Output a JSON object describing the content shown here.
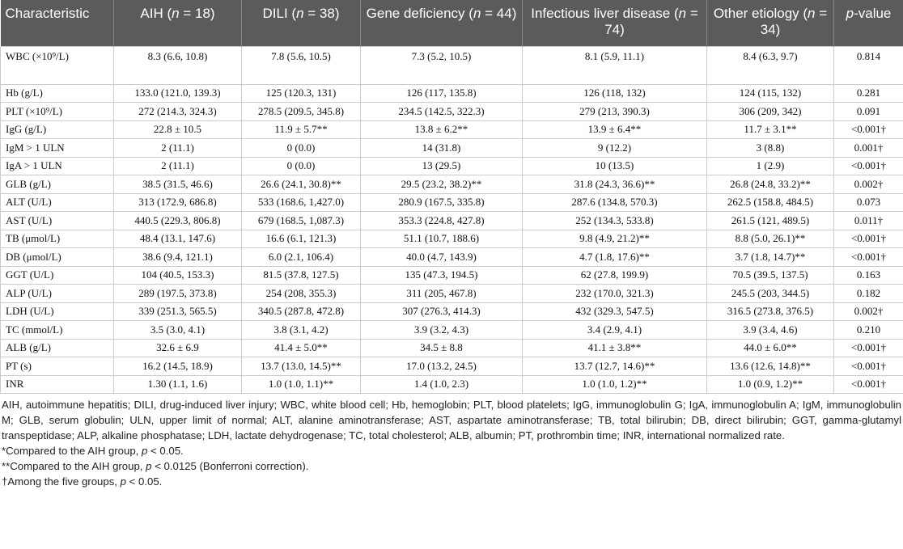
{
  "table": {
    "header": [
      [
        {
          "text": "Characteristic"
        }
      ],
      [
        {
          "text": "AIH ("
        },
        {
          "text": "n",
          "italic": true
        },
        {
          "text": " = 18)"
        }
      ],
      [
        {
          "text": "DILI ("
        },
        {
          "text": "n",
          "italic": true
        },
        {
          "text": " = 38)"
        }
      ],
      [
        {
          "text": "Gene deficiency ("
        },
        {
          "text": "n",
          "italic": true
        },
        {
          "text": " = 44)"
        }
      ],
      [
        {
          "text": "Infectious liver disease ("
        },
        {
          "text": "n",
          "italic": true
        },
        {
          "text": " = 74)"
        }
      ],
      [
        {
          "text": "Other etiology ("
        },
        {
          "text": "n",
          "italic": true
        },
        {
          "text": " = 34)"
        }
      ],
      [
        {
          "text": "p",
          "italic": true
        },
        {
          "text": "-value"
        }
      ]
    ],
    "rows": [
      [
        "WBC (×10⁹/L)",
        "8.3 (6.6, 10.8)",
        "7.8 (5.6, 10.5)",
        "7.3 (5.2, 10.5)",
        "8.1 (5.9, 11.1)",
        "8.4 (6.3, 9.7)",
        "0.814"
      ],
      [
        "Hb (g/L)",
        "133.0 (121.0, 139.3)",
        "125 (120.3, 131)",
        "126 (117, 135.8)",
        "126 (118, 132)",
        "124 (115, 132)",
        "0.281"
      ],
      [
        "PLT (×10⁹/L)",
        "272 (214.3, 324.3)",
        "278.5 (209.5, 345.8)",
        "234.5 (142.5, 322.3)",
        "279 (213, 390.3)",
        "306 (209, 342)",
        "0.091"
      ],
      [
        "IgG (g/L)",
        "22.8 ± 10.5",
        "11.9 ± 5.7**",
        "13.8 ± 6.2**",
        "13.9 ± 6.4**",
        "11.7 ± 3.1**",
        "<0.001†"
      ],
      [
        "IgM > 1 ULN",
        "2 (11.1)",
        "0 (0.0)",
        "14 (31.8)",
        "9 (12.2)",
        "3 (8.8)",
        "0.001†"
      ],
      [
        "IgA > 1 ULN",
        "2 (11.1)",
        "0 (0.0)",
        "13 (29.5)",
        "10 (13.5)",
        "1 (2.9)",
        "<0.001†"
      ],
      [
        "GLB (g/L)",
        "38.5 (31.5, 46.6)",
        "26.6 (24.1, 30.8)**",
        "29.5 (23.2, 38.2)**",
        "31.8 (24.3, 36.6)**",
        "26.8 (24.8, 33.2)**",
        "0.002†"
      ],
      [
        "ALT (U/L)",
        "313 (172.9, 686.8)",
        "533 (168.6, 1,427.0)",
        "280.9 (167.5, 335.8)",
        "287.6 (134.8, 570.3)",
        "262.5 (158.8, 484.5)",
        "0.073"
      ],
      [
        "AST (U/L)",
        "440.5 (229.3, 806.8)",
        "679 (168.5, 1,087.3)",
        "353.3 (224.8, 427.8)",
        "252 (134.3, 533.8)",
        "261.5 (121, 489.5)",
        "0.011†"
      ],
      [
        "TB (μmol/L)",
        "48.4 (13.1, 147.6)",
        "16.6 (6.1, 121.3)",
        "51.1 (10.7, 188.6)",
        "9.8 (4.9, 21.2)**",
        "8.8 (5.0, 26.1)**",
        "<0.001†"
      ],
      [
        "DB (μmol/L)",
        "38.6 (9.4, 121.1)",
        "6.0 (2.1, 106.4)",
        "40.0 (4.7, 143.9)",
        "4.7 (1.8, 17.6)**",
        "3.7 (1.8, 14.7)**",
        "<0.001†"
      ],
      [
        "GGT (U/L)",
        "104 (40.5, 153.3)",
        "81.5 (37.8, 127.5)",
        "135 (47.3, 194.5)",
        "62 (27.8, 199.9)",
        "70.5 (39.5, 137.5)",
        "0.163"
      ],
      [
        "ALP (U/L)",
        "289 (197.5, 373.8)",
        "254 (208, 355.3)",
        "311 (205, 467.8)",
        "232 (170.0, 321.3)",
        "245.5 (203, 344.5)",
        "0.182"
      ],
      [
        "LDH (U/L)",
        "339 (251.3, 565.5)",
        "340.5 (287.8, 472.8)",
        "307 (276.3, 414.3)",
        "432 (329.3, 547.5)",
        "316.5 (273.8, 376.5)",
        "0.002†"
      ],
      [
        "TC (mmol/L)",
        "3.5 (3.0, 4.1)",
        "3.8 (3.1, 4.2)",
        "3.9 (3.2, 4.3)",
        "3.4 (2.9, 4.1)",
        "3.9 (3.4, 4.6)",
        "0.210"
      ],
      [
        "ALB (g/L)",
        "32.6 ± 6.9",
        "41.4 ± 5.0**",
        "34.5 ± 8.8",
        "41.1 ± 3.8**",
        "44.0 ± 6.0**",
        "<0.001†"
      ],
      [
        "PT (s)",
        "16.2 (14.5, 18.9)",
        "13.7 (13.0, 14.5)**",
        "17.0 (13.2, 24.5)",
        "13.7 (12.7, 14.6)**",
        "13.6 (12.6, 14.8)**",
        "<0.001†"
      ],
      [
        "INR",
        "1.30 (1.1, 1.6)",
        "1.0 (1.0, 1.1)**",
        "1.4 (1.0, 2.3)",
        "1.0 (1.0, 1.2)**",
        "1.0 (0.9, 1.2)**",
        "<0.001†"
      ]
    ]
  },
  "footnotes": [
    [
      {
        "text": "AIH, autoimmune hepatitis; DILI, drug-induced liver injury; WBC, white blood cell; Hb, hemoglobin; PLT, blood platelets; IgG, immunoglobulin G; IgA, immunoglobulin A; IgM, immunoglobulin M; GLB, serum globulin; ULN, upper limit of normal; ALT, alanine aminotransferase; AST, aspartate aminotransferase; TB, total bilirubin; DB, direct bilirubin; GGT, gamma-glutamyl transpeptidase; ALP, alkaline phosphatase; LDH, lactate dehydrogenase; TC, total cholesterol; ALB, albumin; PT, prothrombin time; INR, international normalized rate."
      }
    ],
    [
      {
        "text": "*Compared to the AIH group, "
      },
      {
        "text": "p",
        "italic": true
      },
      {
        "text": " < 0.05."
      }
    ],
    [
      {
        "text": "**Compared to the AIH group, "
      },
      {
        "text": "p",
        "italic": true
      },
      {
        "text": " < 0.0125 (Bonferroni correction)."
      }
    ],
    [
      {
        "text": "†Among the five groups, "
      },
      {
        "text": "p",
        "italic": true
      },
      {
        "text": " < 0.05."
      }
    ]
  ]
}
